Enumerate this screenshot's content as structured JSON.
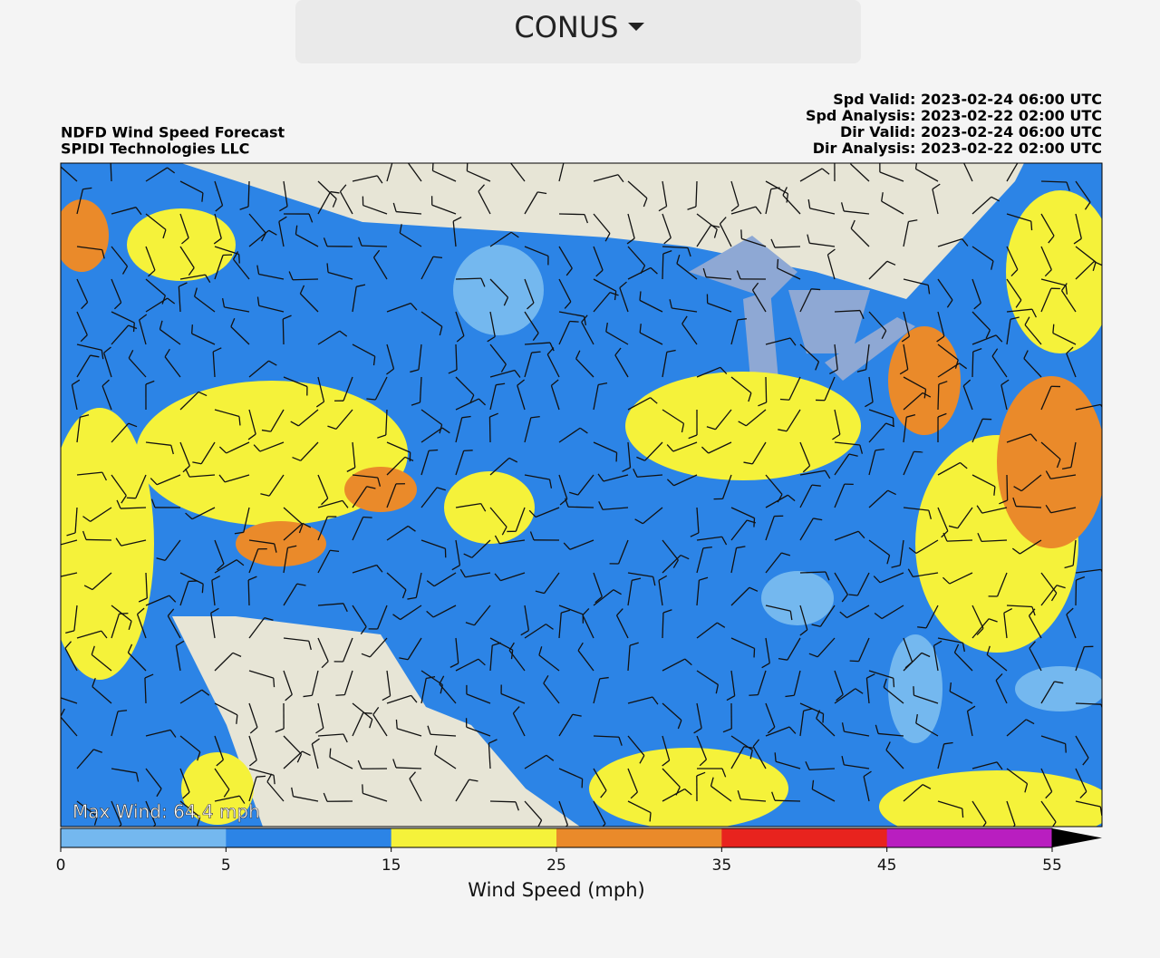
{
  "dropdown": {
    "label": "CONUS"
  },
  "header": {
    "title": "NDFD Wind Speed Forecast",
    "source": "SPIDI Technologies LLC",
    "times": [
      {
        "label": "Spd Valid:",
        "value": "2023-02-24 06:00 UTC"
      },
      {
        "label": "Spd Analysis:",
        "value": "2023-02-22 02:00 UTC"
      },
      {
        "label": "Dir Valid:",
        "value": "2023-02-24 06:00 UTC"
      },
      {
        "label": "Dir Analysis:",
        "value": "2023-02-22 02:00 UTC"
      }
    ]
  },
  "map": {
    "max_wind": "Max Wind: 64.4 mph"
  },
  "colorbar": {
    "label": "Wind Speed (mph)",
    "ticks": [
      0,
      5,
      15,
      25,
      35,
      45,
      55
    ],
    "colors": [
      "#74b8ef",
      "#2c84e6",
      "#f5f23a",
      "#ea8a2a",
      "#e8231e",
      "#b91ec0"
    ]
  }
}
